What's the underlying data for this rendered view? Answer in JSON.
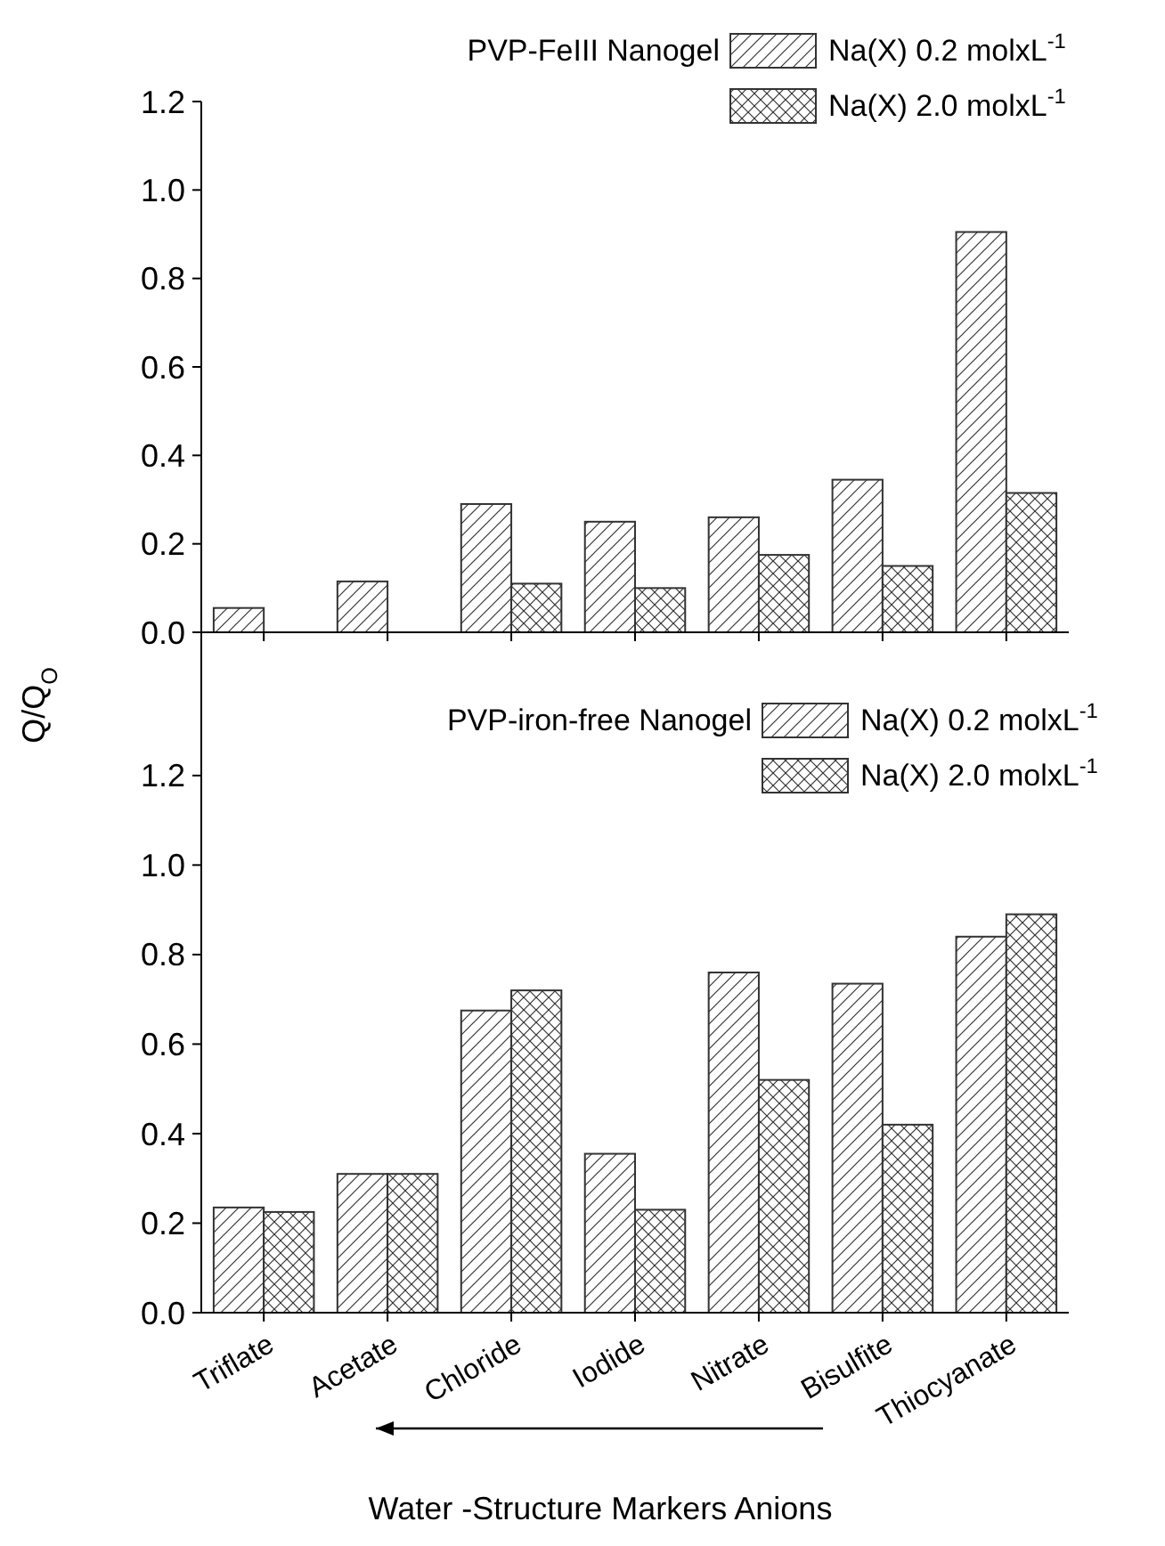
{
  "chart_data": [
    {
      "type": "bar",
      "legend_title": "PVP-FeIII Nanogel",
      "ylabel": "Q/Q$_{O}$",
      "categories": [
        null,
        null,
        null,
        null,
        null,
        null,
        null
      ],
      "ylim": [
        0,
        1.2
      ],
      "yticks": [
        {
          "value": 0,
          "label": "0.0"
        },
        {
          "value": 0.2,
          "label": "0.2"
        },
        {
          "value": 0.4,
          "label": "0.4"
        },
        {
          "value": 0.6,
          "label": "0.6"
        },
        {
          "value": 0.8,
          "label": "0.8"
        },
        {
          "value": 1.0,
          "label": "1.0"
        },
        {
          "value": 1.2,
          "label": "1.2"
        }
      ],
      "tick_labels": "y",
      "legend": "top right",
      "grid": false,
      "series": [
        {
          "name": "Na(X) 0.2 molxL$^{-1}$",
          "color": "#333333",
          "values": [
            0.055,
            0.115,
            0.29,
            0.25,
            0.26,
            0.345,
            0.905
          ]
        },
        {
          "name": "Na(X) 2.0 molxL$^{-1}$",
          "color": "#333333",
          "values": [
            null,
            null,
            0.11,
            0.1,
            0.175,
            0.15,
            0.315
          ]
        }
      ]
    },
    {
      "type": "bar",
      "legend_title": "PVP-iron-free Nanogel",
      "xlabel": "Water -Structure Markers Anions",
      "categories": [
        "Triflate",
        "Acetate",
        "Chloride",
        "Iodide",
        "Nitrate",
        "Bisulfite",
        "Thiocyanate"
      ],
      "ylim": [
        0,
        1.52
      ],
      "yticks": [
        {
          "value": 0,
          "label": "0.0"
        },
        0.2,
        0.4,
        0.6,
        0.8,
        {
          "value": 1.0,
          "label": "1.0"
        },
        1.2
      ],
      "legend": "top right",
      "grid": false,
      "series": [
        {
          "name": "Na(X) 0.2 molxL$^{-1}$",
          "color": "#333333",
          "values": [
            0.235,
            0.31,
            0.675,
            0.355,
            0.76,
            0.735,
            0.84
          ]
        },
        {
          "name": "Na(X) 2.0 molxL$^{-1}$",
          "color": "#333333",
          "values": [
            0.225,
            0.31,
            0.72,
            0.23,
            0.52,
            0.42,
            0.89
          ]
        }
      ]
    }
  ]
}
